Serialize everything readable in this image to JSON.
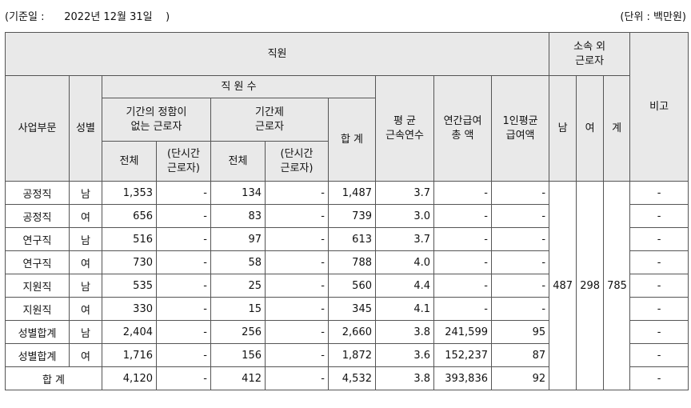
{
  "header": {
    "left_text": "(기준일 :      2022년 12월 31일    )",
    "right_text": "(단위 : 백만원)"
  },
  "table": {
    "group_title": "직원",
    "subcontract_title_line1": "소속 외",
    "subcontract_title_line2": "근로자",
    "remark_title": "비고",
    "dept_title": "사업부문",
    "gender_title": "성별",
    "headcount_title": "직 원 수",
    "permanent_title_line1": "기간의 정함이",
    "permanent_title_line2": "없는 근로자",
    "contract_title_line1": "기간제",
    "contract_title_line2": "근로자",
    "total_title": "합 계",
    "avg_tenure_line1": "평 균",
    "avg_tenure_line2": "근속연수",
    "annual_pay_line1": "연간급여",
    "annual_pay_line2": "총 액",
    "per_capita_line1": "1인평균",
    "per_capita_line2": "급여액",
    "sub_male": "남",
    "sub_female": "여",
    "sub_total": "계",
    "all_label": "전체",
    "parttime_line1": "(단시간",
    "parttime_line2": "근로자)",
    "subcontract_values": {
      "male": "487",
      "female": "298",
      "total": "785"
    },
    "rows": [
      {
        "dept": "공정직",
        "gender": "남",
        "perm_all": "1,353",
        "perm_part": "-",
        "cont_all": "134",
        "cont_part": "-",
        "total": "1,487",
        "tenure": "3.7",
        "annual": "-",
        "per_capita": "-",
        "remark": "-"
      },
      {
        "dept": "공정직",
        "gender": "여",
        "perm_all": "656",
        "perm_part": "-",
        "cont_all": "83",
        "cont_part": "-",
        "total": "739",
        "tenure": "3.0",
        "annual": "-",
        "per_capita": "-",
        "remark": "-"
      },
      {
        "dept": "연구직",
        "gender": "남",
        "perm_all": "516",
        "perm_part": "-",
        "cont_all": "97",
        "cont_part": "-",
        "total": "613",
        "tenure": "3.7",
        "annual": "-",
        "per_capita": "-",
        "remark": "-"
      },
      {
        "dept": "연구직",
        "gender": "여",
        "perm_all": "730",
        "perm_part": "-",
        "cont_all": "58",
        "cont_part": "-",
        "total": "788",
        "tenure": "4.0",
        "annual": "-",
        "per_capita": "-",
        "remark": "-"
      },
      {
        "dept": "지원직",
        "gender": "남",
        "perm_all": "535",
        "perm_part": "-",
        "cont_all": "25",
        "cont_part": "-",
        "total": "560",
        "tenure": "4.4",
        "annual": "-",
        "per_capita": "-",
        "remark": "-"
      },
      {
        "dept": "지원직",
        "gender": "여",
        "perm_all": "330",
        "perm_part": "-",
        "cont_all": "15",
        "cont_part": "-",
        "total": "345",
        "tenure": "4.1",
        "annual": "-",
        "per_capita": "-",
        "remark": "-"
      },
      {
        "dept": "성별합계",
        "gender": "남",
        "perm_all": "2,404",
        "perm_part": "-",
        "cont_all": "256",
        "cont_part": "-",
        "total": "2,660",
        "tenure": "3.8",
        "annual": "241,599",
        "per_capita": "95",
        "remark": "-"
      },
      {
        "dept": "성별합계",
        "gender": "여",
        "perm_all": "1,716",
        "perm_part": "-",
        "cont_all": "156",
        "cont_part": "-",
        "total": "1,872",
        "tenure": "3.6",
        "annual": "152,237",
        "per_capita": "87",
        "remark": "-"
      }
    ],
    "grand_total": {
      "label": "합 계",
      "perm_all": "4,120",
      "perm_part": "-",
      "cont_all": "412",
      "cont_part": "-",
      "total": "4,532",
      "tenure": "3.8",
      "annual": "393,836",
      "per_capita": "92",
      "remark": "-"
    }
  }
}
